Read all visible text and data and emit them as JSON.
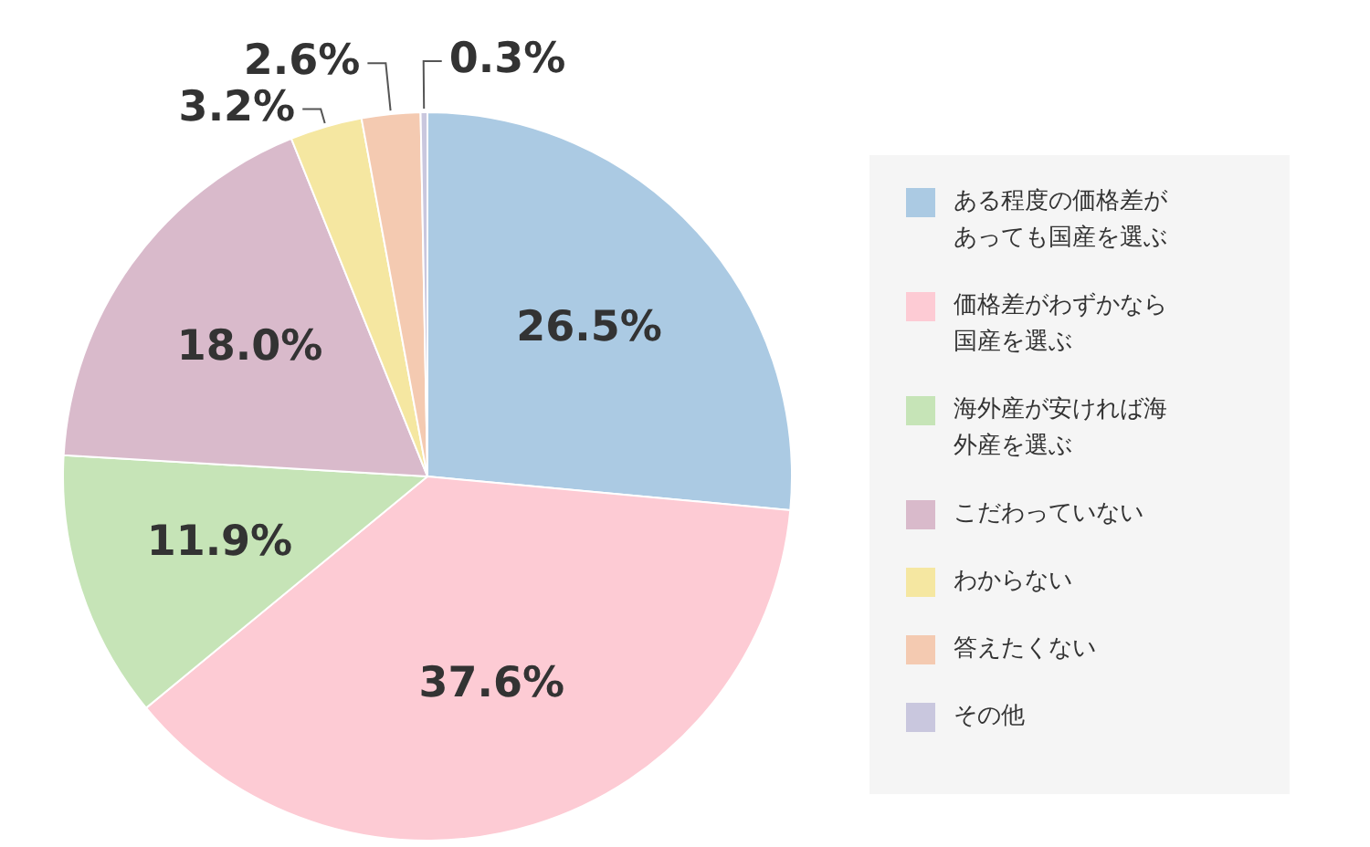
{
  "chart_data": {
    "type": "pie",
    "categories": [
      "ある程度の価格差があっても国産を選ぶ",
      "価格差がわずかなら国産を選ぶ",
      "海外産が安ければ海外産を選ぶ",
      "こだわっていない",
      "わからない",
      "答えたくない",
      "その他"
    ],
    "values": [
      26.5,
      37.6,
      11.9,
      18.0,
      3.2,
      2.6,
      0.3
    ],
    "colors": [
      "#abcae3",
      "#fdcbd4",
      "#c6e4b7",
      "#d9bacb",
      "#f5e7a1",
      "#f4cab1",
      "#c9c7de"
    ],
    "value_labels": [
      "26.5%",
      "37.6%",
      "11.9%",
      "18.0%",
      "3.2%",
      "2.6%",
      "0.3%"
    ],
    "legend": "right"
  }
}
